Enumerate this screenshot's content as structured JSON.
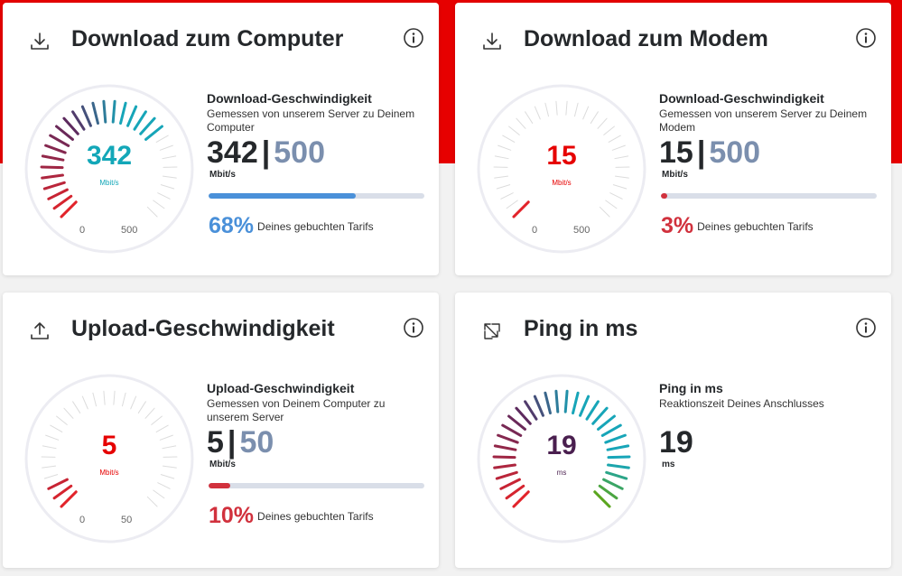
{
  "cards": [
    {
      "title": "Download zum Computer",
      "icon": "download-icon",
      "gauge": {
        "value": "342",
        "unit": "Mbit/s",
        "min_label": "0",
        "max_label": "500",
        "fraction": 0.684,
        "value_color": "#13a7b8"
      },
      "heading": "Download-Geschwindigkeit",
      "description": "Gemessen von unserem Server zu Deinem Computer",
      "current": "342",
      "separator": "|",
      "max": "500",
      "unit": "Mbit/s",
      "progress_fraction": 0.68,
      "progress_color": "#4a90d9",
      "percent": "68%",
      "percent_color": "#4a90d9",
      "percent_label": "Deines gebuchten Tarifs"
    },
    {
      "title": "Download zum Modem",
      "icon": "download-icon",
      "gauge": {
        "value": "15",
        "unit": "Mbit/s",
        "min_label": "0",
        "max_label": "500",
        "fraction": 0.03,
        "value_color": "#e60000"
      },
      "heading": "Download-Geschwindigkeit",
      "description": "Gemessen von unserem Server zu Deinem Modem",
      "current": "15",
      "separator": "|",
      "max": "500",
      "unit": "Mbit/s",
      "progress_fraction": 0.03,
      "progress_color": "#d1313d",
      "percent": "3%",
      "percent_color": "#d1313d",
      "percent_label": "Deines gebuchten Tarifs"
    },
    {
      "title": "Upload-Geschwindigkeit",
      "icon": "upload-icon",
      "gauge": {
        "value": "5",
        "unit": "Mbit/s",
        "min_label": "0",
        "max_label": "50",
        "fraction": 0.1,
        "value_color": "#e60000"
      },
      "heading": "Upload-Geschwindigkeit",
      "description": "Gemessen von Deinem Computer zu unserem Server",
      "current": "5",
      "separator": "|",
      "max": "50",
      "unit": "Mbit/s",
      "progress_fraction": 0.1,
      "progress_color": "#d1313d",
      "percent": "10%",
      "percent_color": "#d1313d",
      "percent_label": "Deines gebuchten Tarifs"
    },
    {
      "title": "Ping in ms",
      "icon": "ping-icon",
      "gauge": {
        "value": "19",
        "unit": "ms",
        "min_label": "",
        "max_label": "",
        "fraction": 1.0,
        "value_color": "#4a1f4f"
      },
      "heading": "Ping in ms",
      "description": "Reaktionszeit Deines Anschlusses",
      "current": "19",
      "separator": "",
      "max": "",
      "unit": "ms",
      "progress_fraction": null,
      "progress_color": "",
      "percent": "",
      "percent_color": "",
      "percent_label": ""
    }
  ],
  "colors": {
    "brand_red": "#e60000",
    "tick_inactive": "#dcdcdc",
    "tick_red": "#e2232a",
    "tick_purple": "#5b2a5f",
    "tick_teal": "#17a5b8",
    "tick_green": "#5aa51e"
  }
}
